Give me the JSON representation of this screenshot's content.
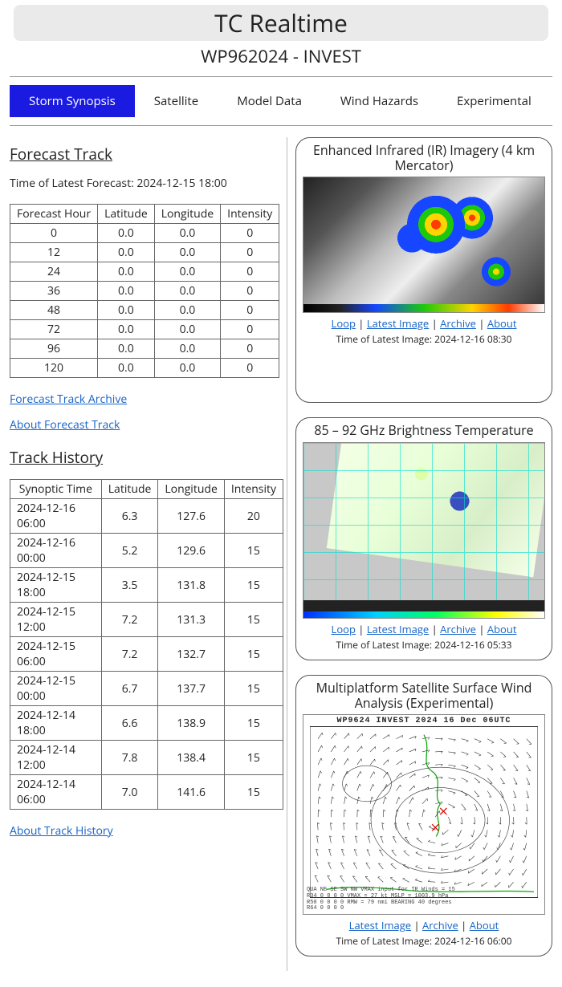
{
  "header": {
    "title": "TC Realtime",
    "subtitle": "WP962024 - INVEST"
  },
  "tabs": [
    "Storm Synopsis",
    "Satellite",
    "Model Data",
    "Wind Hazards",
    "Experimental"
  ],
  "active_tab_index": 0,
  "forecast": {
    "heading": "Forecast Track",
    "time_label": "Time of Latest Forecast: 2024-12-15 18:00",
    "columns": [
      "Forecast Hour",
      "Latitude",
      "Longitude",
      "Intensity"
    ],
    "rows": [
      [
        "0",
        "0.0",
        "0.0",
        "0"
      ],
      [
        "12",
        "0.0",
        "0.0",
        "0"
      ],
      [
        "24",
        "0.0",
        "0.0",
        "0"
      ],
      [
        "36",
        "0.0",
        "0.0",
        "0"
      ],
      [
        "48",
        "0.0",
        "0.0",
        "0"
      ],
      [
        "72",
        "0.0",
        "0.0",
        "0"
      ],
      [
        "96",
        "0.0",
        "0.0",
        "0"
      ],
      [
        "120",
        "0.0",
        "0.0",
        "0"
      ]
    ],
    "link_archive": "Forecast Track Archive",
    "link_about": "About Forecast Track"
  },
  "history": {
    "heading": "Track History",
    "columns": [
      "Synoptic Time",
      "Latitude",
      "Longitude",
      "Intensity"
    ],
    "rows": [
      [
        "2024-12-16 06:00",
        "6.3",
        "127.6",
        "20"
      ],
      [
        "2024-12-16 00:00",
        "5.2",
        "129.6",
        "15"
      ],
      [
        "2024-12-15 18:00",
        "3.5",
        "131.8",
        "15"
      ],
      [
        "2024-12-15 12:00",
        "7.2",
        "131.3",
        "15"
      ],
      [
        "2024-12-15 06:00",
        "7.2",
        "132.7",
        "15"
      ],
      [
        "2024-12-15 00:00",
        "6.7",
        "137.7",
        "15"
      ],
      [
        "2024-12-14 18:00",
        "6.6",
        "138.9",
        "15"
      ],
      [
        "2024-12-14 12:00",
        "7.8",
        "138.4",
        "15"
      ],
      [
        "2024-12-14 06:00",
        "7.0",
        "141.6",
        "15"
      ]
    ],
    "link_about": "About Track History"
  },
  "panels": {
    "ir": {
      "title": "Enhanced Infrared (IR) Imagery (4 km Mercator)",
      "links": [
        "Loop",
        "Latest Image",
        "Archive",
        "About"
      ],
      "time": "Time of Latest Image: 2024-12-16 08:30"
    },
    "ghz": {
      "title": "85 – 92 GHz Brightness Temperature",
      "links": [
        "Loop",
        "Latest Image",
        "Archive",
        "About"
      ],
      "time": "Time of Latest Image: 2024-12-16 05:33"
    },
    "wind": {
      "title": "Multiplatform Satellite Surface Wind Analysis (Experimental)",
      "header_text": "WP9624  INVEST   2024 16 Dec 06UTC",
      "footer_text": "QUA  NE  SE  SW  NW  VMAX input for IR Winds =   15\\nR34   0   0   0   0   VMAX =    27 kt MSLP = 1003.9 hPa\\nR50   0   0   0   0   RMW =    79 nmi BEARING    40 degrees\\nR64   0   0   0   0",
      "links": [
        "Latest Image",
        "Archive",
        "About"
      ],
      "time": "Time of Latest Image: 2024-12-16 06:00"
    }
  },
  "colors": {
    "active_tab_bg": "#1a1ae0",
    "link": "#1563c6"
  }
}
